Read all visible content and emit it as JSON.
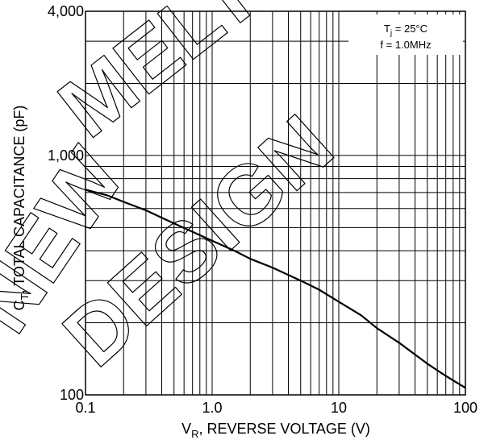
{
  "chart_data": {
    "type": "line",
    "xscale": "log",
    "yscale": "log",
    "xlim": [
      0.1,
      100
    ],
    "ylim": [
      100,
      4000
    ],
    "grid": true,
    "xlabel": {
      "prefix": "V",
      "sub": "R",
      "suffix": ", REVERSE VOLTAGE (V)"
    },
    "ylabel": {
      "prefix": "C",
      "sub": "T",
      "suffix": ", TOTAL CAPACITANCE (pF)"
    },
    "x_ticks": [
      {
        "value": 0.1,
        "label": "0.1"
      },
      {
        "value": 1,
        "label": "1.0"
      },
      {
        "value": 10,
        "label": "10"
      },
      {
        "value": 100,
        "label": "100"
      }
    ],
    "y_ticks": [
      {
        "value": 100,
        "label": "100"
      },
      {
        "value": 1000,
        "label": "1,000"
      },
      {
        "value": 4000,
        "label": "4,000"
      }
    ],
    "annotation": {
      "line1_prefix": "T",
      "line1_sub": "j",
      "line1_suffix": " = 25°C",
      "line2": "f = 1.0MHz"
    },
    "series": [
      {
        "color": "#000000",
        "x": [
          0.1,
          0.15,
          0.2,
          0.3,
          0.5,
          0.7,
          1.0,
          1.5,
          2.0,
          3.0,
          5.0,
          7.0,
          10,
          15,
          20,
          30,
          50,
          70,
          100
        ],
        "y": [
          720,
          680,
          640,
          590,
          520,
          480,
          440,
          400,
          370,
          340,
          300,
          275,
          245,
          215,
          190,
          165,
          135,
          120,
          107
        ]
      }
    ]
  },
  "watermark": [
    "NEW",
    "MELT",
    "DESIGN"
  ]
}
